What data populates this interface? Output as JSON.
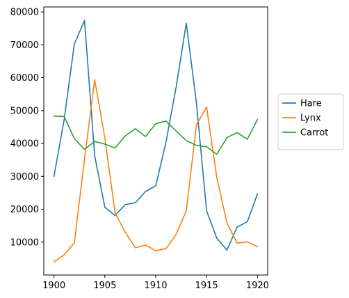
{
  "chart_data": {
    "type": "line",
    "title": "",
    "xlabel": "",
    "ylabel": "",
    "x": [
      1900,
      1901,
      1902,
      1903,
      1904,
      1905,
      1906,
      1907,
      1908,
      1909,
      1910,
      1911,
      1912,
      1913,
      1914,
      1915,
      1916,
      1917,
      1918,
      1919,
      1920
    ],
    "xlim": [
      1899,
      1921
    ],
    "ylim": [
      0,
      81500
    ],
    "x_ticks": [
      1900,
      1905,
      1910,
      1915,
      1920
    ],
    "y_ticks": [
      10000,
      20000,
      30000,
      40000,
      50000,
      60000,
      70000,
      80000
    ],
    "x_tick_labels": [
      "1900",
      "1905",
      "1910",
      "1915",
      "1920"
    ],
    "y_tick_labels": [
      "10000",
      "20000",
      "30000",
      "40000",
      "50000",
      "60000",
      "70000",
      "80000"
    ],
    "grid": false,
    "legend_position": "outside-right",
    "series": [
      {
        "name": "Hare",
        "color": "#1f77b4",
        "values": [
          30000,
          47200,
          70200,
          77400,
          36300,
          20600,
          18100,
          21400,
          22000,
          25400,
          27100,
          40300,
          57000,
          76600,
          52300,
          19500,
          11200,
          7600,
          14600,
          16200,
          24700
        ]
      },
      {
        "name": "Lynx",
        "color": "#ff7f0e",
        "values": [
          4000,
          6100,
          9800,
          35200,
          59400,
          41700,
          19000,
          13000,
          8300,
          9100,
          7400,
          8000,
          12300,
          19500,
          45700,
          51100,
          29700,
          15800,
          9700,
          10100,
          8600
        ]
      },
      {
        "name": "Carrot",
        "color": "#2ca02c",
        "values": [
          48300,
          48200,
          41500,
          38200,
          40600,
          39800,
          38600,
          42300,
          44500,
          42100,
          46000,
          46800,
          43800,
          40900,
          39400,
          39000,
          36700,
          41800,
          43300,
          41300,
          47300
        ]
      }
    ]
  }
}
